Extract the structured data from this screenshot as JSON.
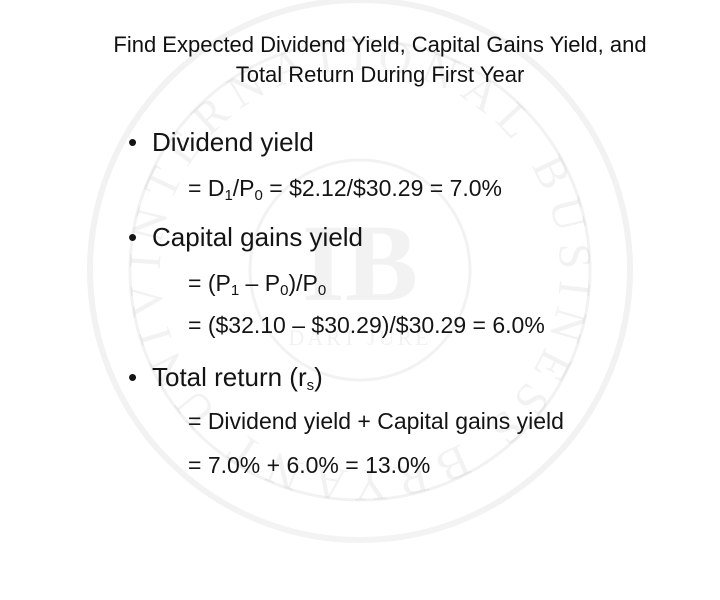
{
  "slide": {
    "title_line1": "Find Expected Dividend Yield, Capital Gains Yield, and",
    "title_line2": "Total Return During First Year",
    "bullet_symbol": "•",
    "dividend": {
      "label": "Dividend yield",
      "formula": {
        "eq": "= D",
        "sub1": "1",
        "slash": "/P",
        "sub0": "0",
        "rest": " = $2.12/$30.29 = 7.0%"
      }
    },
    "capital_gains": {
      "label": "Capital gains yield",
      "formula1": {
        "eq": "= (P",
        "sub1": "1",
        "mid": " – P",
        "sub0a": "0",
        "close": ")/P",
        "sub0b": "0"
      },
      "formula2": "= ($32.10 – $30.29)/$30.29 = 6.0%"
    },
    "total_return": {
      "label_pre": "Total return (r",
      "label_sub": "s",
      "label_post": ")",
      "line1": "= Dividend yield + Capital gains yield",
      "line2": "= 7.0% + 6.0% = 13.0%"
    }
  },
  "watermark": {
    "ring_text": "INTERNATIONAL BUSINESS BRYANT UNIVERSITY",
    "center_letters": "IB",
    "center_word": "DART JURE"
  }
}
